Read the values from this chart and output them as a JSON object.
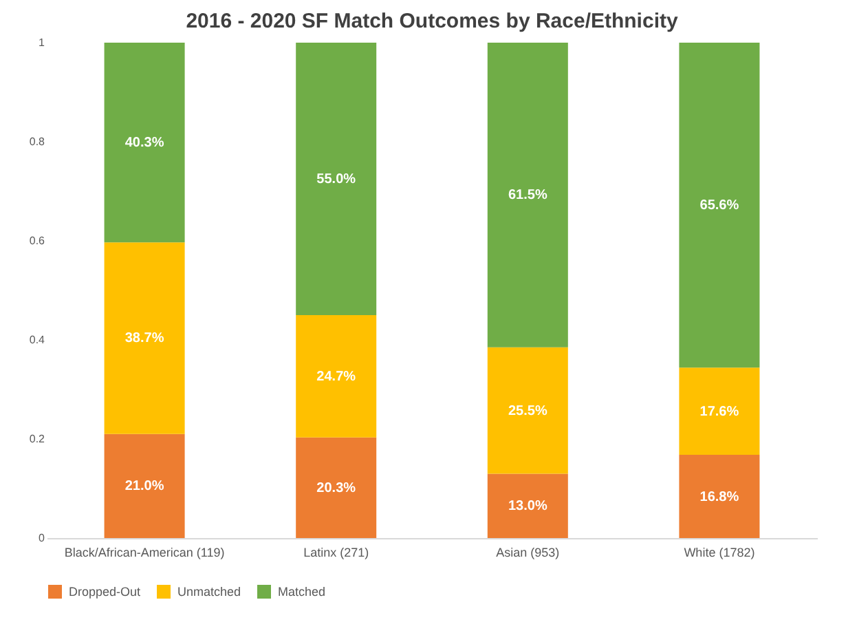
{
  "chart_data": {
    "type": "bar",
    "title": "2016 - 2020 SF Match Outcomes by Race/Ethnicity",
    "categories": [
      "Black/African-American (119)",
      "Latinx (271)",
      "Asian (953)",
      "White (1782)"
    ],
    "stacked": true,
    "series": [
      {
        "name": "Dropped-Out",
        "color": "#ed7d31",
        "values": [
          0.21,
          0.203,
          0.13,
          0.168
        ],
        "value_labels": [
          "21.0%",
          "20.3%",
          "13.0%",
          "16.8%"
        ]
      },
      {
        "name": "Unmatched",
        "color": "#ffc000",
        "values": [
          0.387,
          0.247,
          0.255,
          0.176
        ],
        "value_labels": [
          "38.7%",
          "24.7%",
          "25.5%",
          "17.6%"
        ]
      },
      {
        "name": "Matched",
        "color": "#70ad47",
        "values": [
          0.403,
          0.55,
          0.615,
          0.656
        ],
        "value_labels": [
          "40.3%",
          "55.0%",
          "61.5%",
          "65.6%"
        ]
      }
    ],
    "ylim": [
      0,
      1
    ],
    "yticks": [
      0,
      0.2,
      0.4,
      0.6,
      0.8,
      1
    ],
    "grid": false,
    "legend": "bottom"
  }
}
